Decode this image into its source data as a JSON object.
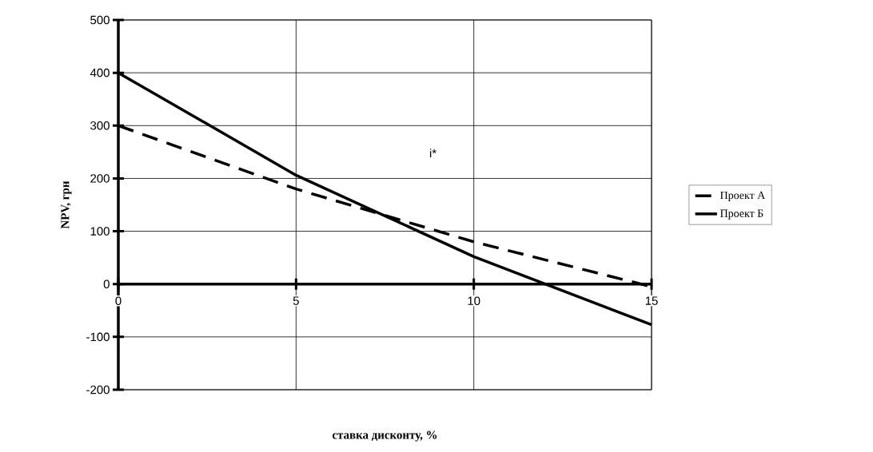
{
  "chart_data": {
    "type": "line",
    "xlabel": "ставка дисконту, %",
    "ylabel": "NPV, грн",
    "x": [
      0,
      5,
      10,
      15
    ],
    "series": [
      {
        "name": "Проект А",
        "color": "#000000",
        "line_style": "dashed",
        "values": [
          300,
          180,
          80,
          -5
        ]
      },
      {
        "name": "Проект Б",
        "color": "#000000",
        "line_style": "solid",
        "values": [
          400,
          206,
          52,
          -77
        ]
      }
    ],
    "xlim": [
      0,
      15
    ],
    "xticks": [
      0,
      5,
      10,
      15
    ],
    "ylim": [
      -200,
      500
    ],
    "yticks": [
      -200,
      -100,
      0,
      100,
      200,
      300,
      400,
      500
    ],
    "annotations": [
      "i*"
    ],
    "grid": true,
    "legend": "right",
    "marker": "none"
  }
}
